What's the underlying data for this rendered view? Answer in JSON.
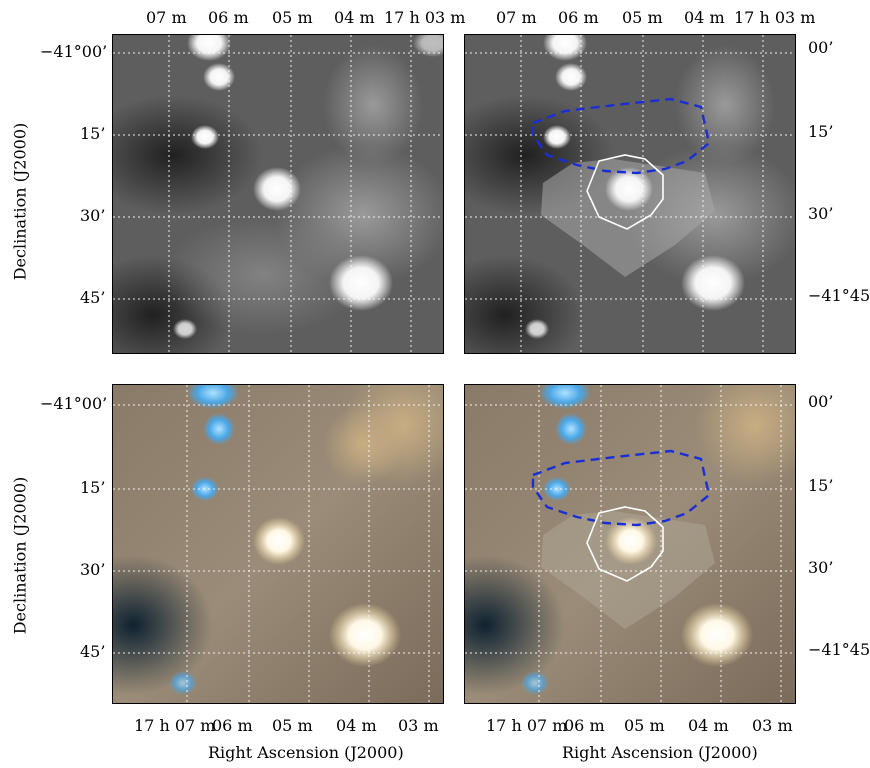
{
  "figure": {
    "x_axis_label": "Right Ascension (J2000)",
    "y_axis_label": "Declination (J2000)",
    "top_ra_ticks": [
      "07 m",
      "06 m",
      "05 m",
      "04 m",
      "17 h 03 m"
    ],
    "bottom_ra_ticks": [
      "17 h 07 m",
      "06 m",
      "05 m",
      "04 m",
      "03 m"
    ],
    "dec_ticks_left": [
      "−41°00’",
      "15’",
      "30’",
      "45’"
    ],
    "dec_ticks_right": [
      "00’",
      "15’",
      "30’",
      "−41°45’"
    ],
    "panels": [
      {
        "id": "top-left",
        "colormap": "grayscale",
        "overlay": false
      },
      {
        "id": "top-right",
        "colormap": "grayscale",
        "overlay": true
      },
      {
        "id": "bottom-left",
        "colormap": "color-composite",
        "overlay": false
      },
      {
        "id": "bottom-right",
        "colormap": "color-composite",
        "overlay": true
      }
    ],
    "overlay_colors": {
      "dashed_region": "#1a2ed6",
      "solid_region": "#ffffff",
      "grid": "#ffffff"
    }
  }
}
